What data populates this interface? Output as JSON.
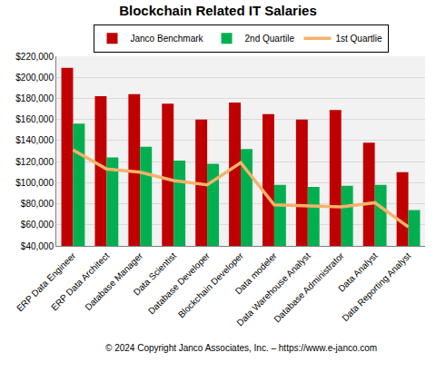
{
  "chart_data": {
    "type": "bar",
    "title": "Blockchain Related IT Salaries",
    "annotations": [
      "© 2024 Copyright Janco Associates, Inc. – https://www.e-janco.com"
    ],
    "categories": [
      "ERP Data Engineer",
      "ERP Data Architect",
      "Database Manager",
      "Data Scientist",
      "Database Developer",
      "Blockchain Developer",
      "Data modeler",
      "Data Warehouse Analyst",
      "Database Administrator",
      "Data Analyst",
      "Data Reporting Analyst"
    ],
    "series": [
      {
        "name": "Janco Benchmark",
        "type": "bar",
        "color": "#c00000",
        "values": [
          209000,
          182000,
          184000,
          175000,
          160000,
          176000,
          165000,
          160000,
          169000,
          138000,
          110000
        ]
      },
      {
        "name": "2nd Quartile",
        "type": "bar",
        "color": "#00b050",
        "values": [
          156000,
          124000,
          134000,
          121000,
          118000,
          132000,
          98000,
          96000,
          97000,
          98000,
          74000
        ]
      },
      {
        "name": "1st Quartlie",
        "type": "line",
        "color": "#f4b36b",
        "values": [
          131000,
          113000,
          110000,
          102000,
          98000,
          119000,
          79000,
          78000,
          77000,
          81000,
          58000
        ]
      }
    ],
    "ylim": [
      40000,
      220000
    ],
    "yticks": [
      {
        "value": 40000,
        "label": "$40,000"
      },
      {
        "value": 60000,
        "label": "$60,000"
      },
      {
        "value": 80000,
        "label": "$80,000"
      },
      {
        "value": 100000,
        "label": "$100,000"
      },
      {
        "value": 120000,
        "label": "$120,000"
      },
      {
        "value": 140000,
        "label": "$140,000"
      },
      {
        "value": 160000,
        "label": "$160,000"
      },
      {
        "value": 180000,
        "label": "$180,000"
      },
      {
        "value": 200000,
        "label": "$200,000"
      },
      {
        "value": 220000,
        "label": "$220,000"
      }
    ],
    "grid": true,
    "legend": "top"
  }
}
